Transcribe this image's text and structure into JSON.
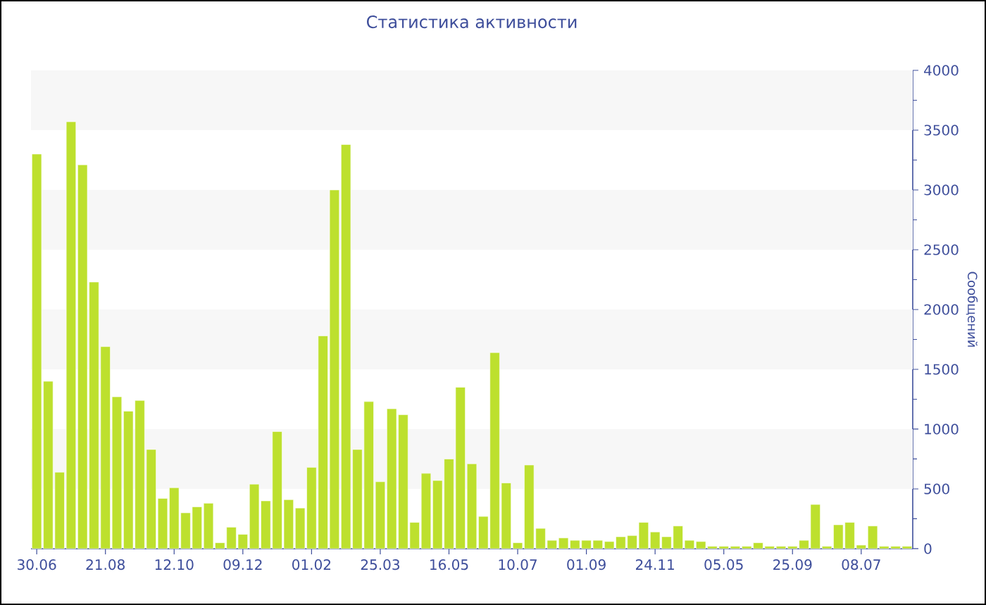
{
  "chart_data": {
    "type": "bar",
    "title": "Статистика активности",
    "ylabel": "Сообщений",
    "categories": [
      "30.06",
      null,
      null,
      null,
      null,
      null,
      "21.08",
      null,
      null,
      null,
      null,
      null,
      "12.10",
      null,
      null,
      null,
      null,
      null,
      "09.12",
      null,
      null,
      null,
      null,
      null,
      "01.02",
      null,
      null,
      null,
      null,
      null,
      "25.03",
      null,
      null,
      null,
      null,
      null,
      "16.05",
      null,
      null,
      null,
      null,
      null,
      "10.07",
      null,
      null,
      null,
      null,
      null,
      "01.09",
      null,
      null,
      null,
      null,
      null,
      "24.11",
      null,
      null,
      null,
      null,
      null,
      "05.05",
      null,
      null,
      null,
      null,
      null,
      "25.09",
      null,
      null,
      null,
      null,
      null,
      "08.07",
      null,
      null,
      null,
      null
    ],
    "values": [
      3300,
      1400,
      640,
      3570,
      3210,
      2230,
      1690,
      1270,
      1150,
      1240,
      830,
      420,
      510,
      300,
      350,
      380,
      50,
      180,
      120,
      540,
      400,
      980,
      410,
      340,
      680,
      1780,
      3000,
      3380,
      830,
      1230,
      560,
      1170,
      1120,
      220,
      630,
      570,
      750,
      1350,
      710,
      270,
      1640,
      550,
      50,
      700,
      170,
      70,
      90,
      70,
      70,
      70,
      60,
      100,
      110,
      220,
      140,
      100,
      190,
      70,
      60,
      20,
      20,
      20,
      20,
      50,
      20,
      20,
      20,
      70,
      370,
      20,
      200,
      220,
      30,
      190,
      20,
      20,
      20
    ],
    "color": "#bde02e",
    "ylim": [
      0,
      4000
    ],
    "yticks": [
      0,
      500,
      1000,
      1500,
      2000,
      2500,
      3000,
      3500,
      4000
    ],
    "bands": [
      {
        "axis": "y",
        "from": 500,
        "to": 1000,
        "color": "#f7f7f7"
      },
      {
        "axis": "y",
        "from": 1500,
        "to": 2000,
        "color": "#f7f7f7"
      },
      {
        "axis": "y",
        "from": 2500,
        "to": 3000,
        "color": "#f7f7f7"
      },
      {
        "axis": "y",
        "from": 3500,
        "to": 4000,
        "color": "#f7f7f7"
      }
    ]
  }
}
